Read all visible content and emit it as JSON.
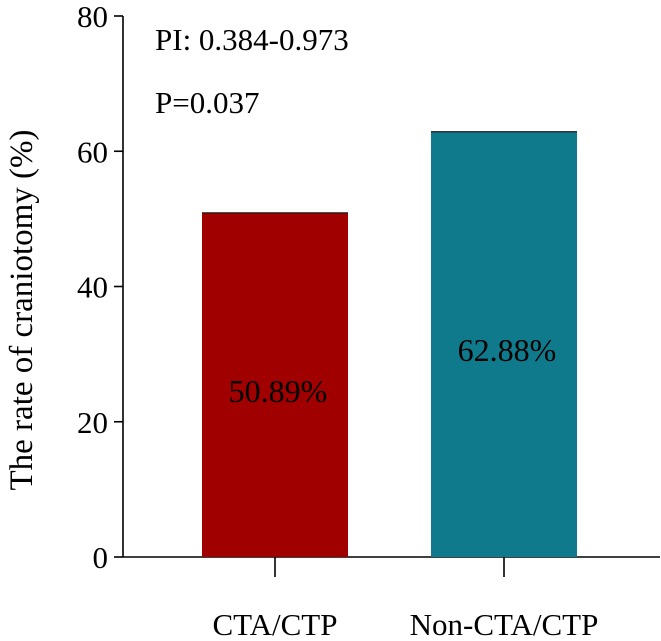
{
  "chart_data": {
    "type": "bar",
    "categories": [
      "CTA/CTP",
      "Non-CTA/CTP"
    ],
    "values": [
      50.89,
      62.88
    ],
    "bar_labels": [
      "50.89%",
      "62.88%"
    ],
    "colors": [
      "#a10000",
      "#0f7a8c"
    ],
    "title": "",
    "xlabel": "",
    "ylabel": "The rate of craniotomy (%)",
    "ylim": [
      0,
      80
    ],
    "yticks": [
      0,
      20,
      40,
      60,
      80
    ],
    "annotations": [
      "PI: 0.384-0.973",
      "P=0.037"
    ],
    "grid": false,
    "legend": "none"
  }
}
